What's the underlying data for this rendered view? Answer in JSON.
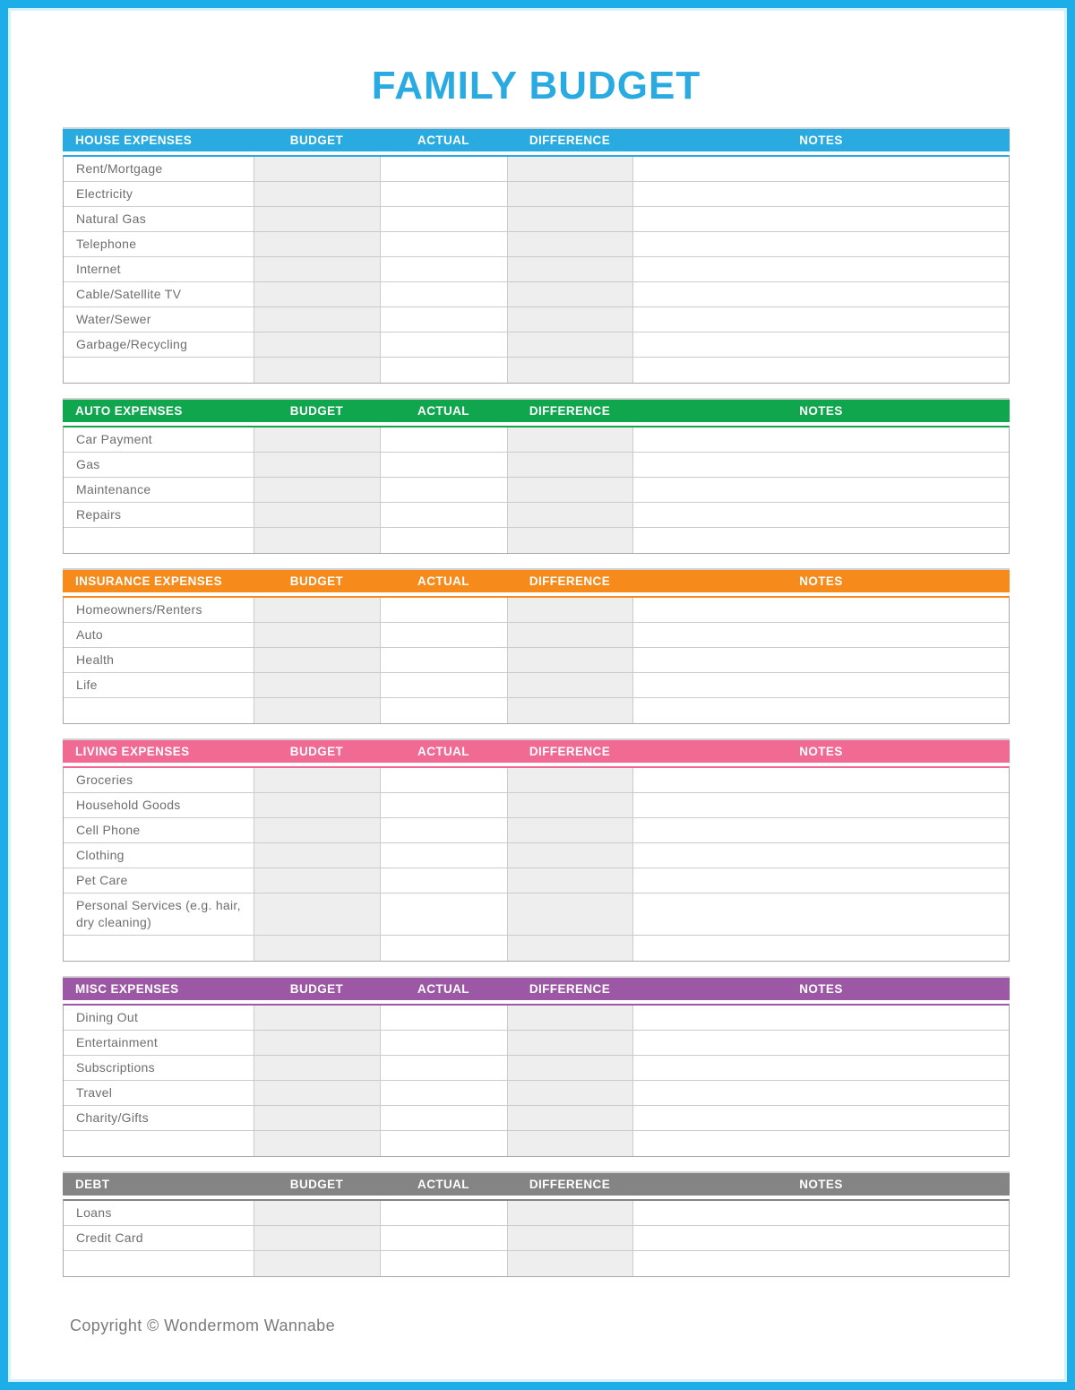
{
  "page": {
    "title": "FAMILY BUDGET",
    "footer": "Copyright © Wondermom Wannabe",
    "border_color": "#1daee9",
    "title_color": "#29abe2",
    "shade_color": "#eeeeee"
  },
  "columns": {
    "budget": "BUDGET",
    "actual": "ACTUAL",
    "difference": "DIFFERENCE",
    "notes": "NOTES"
  },
  "sections": [
    {
      "label": "HOUSE EXPENSES",
      "color": "#29abe2",
      "rows": [
        "Rent/Mortgage",
        "Electricity",
        "Natural Gas",
        "Telephone",
        "Internet",
        "Cable/Satellite TV",
        "Water/Sewer",
        "Garbage/Recycling",
        ""
      ]
    },
    {
      "label": "AUTO EXPENSES",
      "color": "#10a64e",
      "rows": [
        "Car Payment",
        "Gas",
        "Maintenance",
        "Repairs",
        ""
      ]
    },
    {
      "label": "INSURANCE EXPENSES",
      "color": "#f68b1c",
      "rows": [
        "Homeowners/Renters",
        "Auto",
        "Health",
        "Life",
        ""
      ]
    },
    {
      "label": "LIVING EXPENSES",
      "color": "#f16a93",
      "rows": [
        "Groceries",
        "Household Goods",
        "Cell Phone",
        "Clothing",
        "Pet Care",
        "Personal Services (e.g. hair, dry cleaning)",
        ""
      ]
    },
    {
      "label": "MISC EXPENSES",
      "color": "#9c57a5",
      "rows": [
        "Dining Out",
        "Entertainment",
        "Subscriptions",
        "Travel",
        "Charity/Gifts",
        ""
      ]
    },
    {
      "label": "DEBT",
      "color": "#848484",
      "rows": [
        "Loans",
        "Credit Card",
        ""
      ]
    }
  ]
}
